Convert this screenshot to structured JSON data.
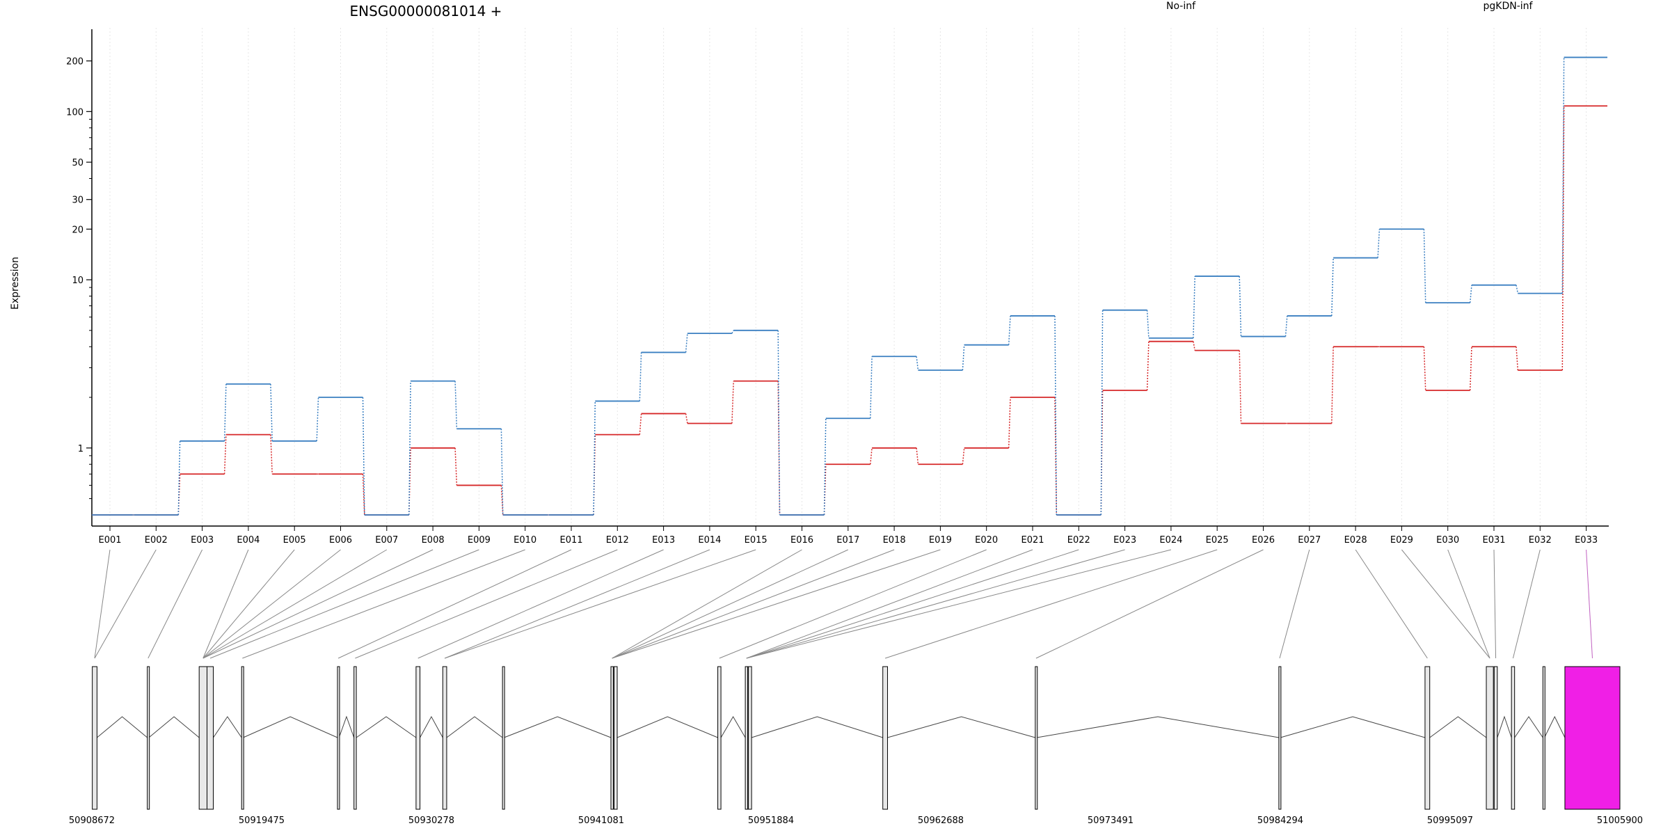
{
  "chart_data": {
    "type": "line",
    "title": "ENSG00000081014 +",
    "ylabel": "Expression",
    "yscale": "log",
    "ylim": [
      0.4,
      260
    ],
    "yticks": [
      1,
      10,
      20,
      30,
      50,
      100,
      200
    ],
    "categories": [
      "E001",
      "E002",
      "E003",
      "E004",
      "E005",
      "E006",
      "E007",
      "E008",
      "E009",
      "E010",
      "E011",
      "E012",
      "E013",
      "E014",
      "E015",
      "E016",
      "E017",
      "E018",
      "E019",
      "E020",
      "E021",
      "E022",
      "E023",
      "E024",
      "E025",
      "E026",
      "E027",
      "E028",
      "E029",
      "E030",
      "E031",
      "E032",
      "E033"
    ],
    "series": [
      {
        "name": "No-inf",
        "color": "#d62728",
        "values": [
          0.4,
          0.4,
          0.7,
          1.2,
          0.7,
          0.7,
          0.4,
          1.0,
          0.6,
          0.4,
          0.4,
          1.2,
          1.6,
          1.4,
          2.5,
          0.4,
          0.8,
          1.0,
          0.8,
          1.0,
          2.0,
          0.4,
          2.2,
          4.3,
          3.8,
          1.4,
          1.4,
          4.0,
          4.0,
          2.2,
          4.0,
          2.9,
          108
        ]
      },
      {
        "name": "pgKDN-inf",
        "color": "#3a7fc1",
        "values": [
          0.4,
          0.4,
          1.1,
          2.4,
          1.1,
          2.0,
          0.4,
          2.5,
          1.3,
          0.4,
          0.4,
          1.9,
          3.7,
          4.8,
          5.0,
          0.4,
          1.5,
          3.5,
          2.9,
          4.1,
          6.1,
          0.4,
          6.6,
          4.5,
          10.5,
          4.6,
          6.1,
          13.5,
          20,
          7.3,
          9.3,
          8.3,
          210
        ]
      }
    ],
    "gene_model": {
      "coordinate_ticks": [
        "50908672",
        "50919475",
        "50930278",
        "50941081",
        "50951884",
        "50962688",
        "50973491",
        "50984294",
        "50995097",
        "51005900"
      ],
      "range": [
        50908672,
        51005900
      ],
      "exons": [
        {
          "start": 50908700,
          "end": 50909000
        },
        {
          "start": 50912200,
          "end": 50912300
        },
        {
          "start": 50915500,
          "end": 50916000
        },
        {
          "start": 50916000,
          "end": 50916400
        },
        {
          "start": 50918200,
          "end": 50918300
        },
        {
          "start": 50924300,
          "end": 50924400
        },
        {
          "start": 50925350,
          "end": 50925500
        },
        {
          "start": 50929300,
          "end": 50929550
        },
        {
          "start": 50931000,
          "end": 50931250
        },
        {
          "start": 50934800,
          "end": 50934900
        },
        {
          "start": 50941700,
          "end": 50941850
        },
        {
          "start": 50941900,
          "end": 50942100
        },
        {
          "start": 50948500,
          "end": 50948700
        },
        {
          "start": 50950250,
          "end": 50950400
        },
        {
          "start": 50950450,
          "end": 50950650
        },
        {
          "start": 50959000,
          "end": 50959300
        },
        {
          "start": 50968700,
          "end": 50968800
        },
        {
          "start": 50984200,
          "end": 50984300
        },
        {
          "start": 50993500,
          "end": 50993800
        },
        {
          "start": 50997400,
          "end": 50997850
        },
        {
          "start": 50997900,
          "end": 50998100
        },
        {
          "start": 50999000,
          "end": 50999200
        },
        {
          "start": 51001000,
          "end": 51001100
        },
        {
          "start": 51002400,
          "end": 51005900,
          "highlight": true
        }
      ],
      "exon_links": [
        0,
        0,
        1,
        2,
        2,
        2,
        2,
        2,
        3,
        4,
        5,
        6,
        7,
        8,
        8,
        10,
        10,
        10,
        10,
        12,
        13,
        13,
        13,
        13,
        15,
        16,
        17,
        18,
        19,
        19,
        20,
        21,
        23
      ],
      "highlight_color": "#f01fe6"
    }
  }
}
